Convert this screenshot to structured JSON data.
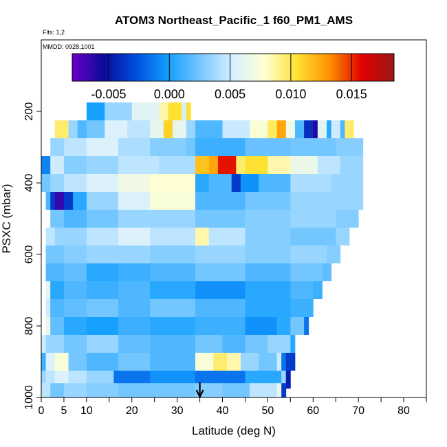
{
  "chart_data": {
    "type": "heatmap",
    "title": "ATOM3 Northeast_Pacific_1 f60_PM1_AMS",
    "flights_note": "Flts: 1,2",
    "dates_note": "MMDD: 0928,1001",
    "xlabel": "Latitude (deg N)",
    "ylabel": "PSXC (mbar)",
    "xlim": [
      0,
      85
    ],
    "ylim": [
      1000,
      0
    ],
    "x_ticks": [
      0,
      5,
      10,
      20,
      30,
      40,
      50,
      60,
      70,
      80
    ],
    "x_tick_labels": [
      "0",
      "5",
      "10",
      "20",
      "30",
      "40",
      "50",
      "60",
      "70",
      "80"
    ],
    "x_minor_ticks": [
      15,
      25,
      35,
      45,
      55,
      65,
      75,
      85
    ],
    "y_ticks": [
      200,
      400,
      600,
      800,
      1000
    ],
    "y_tick_labels": [
      "200",
      "400",
      "600",
      "800",
      "1000"
    ],
    "colorbar": {
      "min": -0.008,
      "max": 0.0185,
      "ticks": [
        -0.005,
        0.0,
        0.005,
        0.01,
        0.015
      ],
      "tick_labels": [
        "-0.005",
        "0.000",
        "0.005",
        "0.010",
        "0.015"
      ],
      "dividers": [
        -0.005,
        0.0,
        0.005,
        0.01,
        0.015
      ]
    },
    "colorscale": [
      "#6a00c8",
      "#0a0a9a",
      "#0050e0",
      "#14a0ff",
      "#78c8ff",
      "#d8f0ff",
      "#ffffd0",
      "#ffe030",
      "#ff9000",
      "#e00000",
      "#9c1818"
    ],
    "arrow_latitude": 35,
    "band_height_mbar": 50,
    "bands": [
      {
        "p": 200,
        "segments": [
          [
            10,
            14,
            0.0
          ],
          [
            14,
            20,
            0.0035
          ],
          [
            20,
            26,
            0.0058
          ],
          [
            26,
            28,
            0.0085
          ],
          [
            28,
            31,
            0.0105
          ],
          [
            31,
            32,
            0.0052
          ],
          [
            32,
            33,
            0.0105
          ]
        ]
      },
      {
        "p": 250,
        "segments": [
          [
            3,
            6,
            0.0095
          ],
          [
            6,
            8,
            0.0035
          ],
          [
            8,
            10,
            0.0015
          ],
          [
            10,
            14,
            0.0025
          ],
          [
            14,
            19,
            0.0055
          ],
          [
            19,
            24,
            0.0045
          ],
          [
            24,
            27,
            0.0062
          ],
          [
            27,
            29,
            0.011
          ],
          [
            29,
            32,
            0.0062
          ],
          [
            32,
            34,
            0.0035
          ],
          [
            34,
            40,
            0.0015
          ],
          [
            40,
            46,
            0.0048
          ],
          [
            46,
            50,
            0.0075
          ],
          [
            50,
            52,
            0.0098
          ],
          [
            52,
            54,
            0.0125
          ],
          [
            54,
            56,
            0.0068
          ],
          [
            56,
            58,
            0.0015
          ],
          [
            58,
            60,
            -0.004
          ],
          [
            60,
            61,
            -0.006
          ],
          [
            61,
            63,
            0.0058
          ],
          [
            63,
            64,
            0.0005
          ],
          [
            64,
            66,
            0.005
          ],
          [
            66,
            67,
            0.0015
          ],
          [
            67,
            69,
            0.0095
          ]
        ]
      },
      {
        "p": 300,
        "segments": [
          [
            2,
            5,
            0.0035
          ],
          [
            5,
            10,
            0.0045
          ],
          [
            10,
            17,
            0.0055
          ],
          [
            17,
            24,
            0.004
          ],
          [
            24,
            32,
            0.003
          ],
          [
            32,
            34,
            0.0025
          ],
          [
            34,
            45,
            0.001
          ],
          [
            45,
            55,
            0.0022
          ],
          [
            55,
            65,
            0.0025
          ],
          [
            65,
            71,
            0.003
          ]
        ]
      },
      {
        "p": 350,
        "segments": [
          [
            0,
            2,
            -0.001
          ],
          [
            2,
            5,
            0.005
          ],
          [
            5,
            10,
            0.003
          ],
          [
            10,
            17,
            0.0035
          ],
          [
            17,
            26,
            0.0045
          ],
          [
            26,
            34,
            0.004
          ],
          [
            34,
            37,
            0.0115
          ],
          [
            37,
            39,
            0.0125
          ],
          [
            39,
            43,
            0.0155
          ],
          [
            43,
            45,
            0.0095
          ],
          [
            45,
            50,
            0.0105
          ],
          [
            50,
            55,
            0.0085
          ],
          [
            55,
            61,
            0.0065
          ],
          [
            61,
            66,
            0.0045
          ],
          [
            66,
            71,
            0.0035
          ]
        ]
      },
      {
        "p": 400,
        "segments": [
          [
            0,
            2,
            0.0025
          ],
          [
            2,
            5,
            0.0035
          ],
          [
            5,
            10,
            0.0045
          ],
          [
            10,
            17,
            0.0055
          ],
          [
            17,
            24,
            0.0068
          ],
          [
            24,
            34,
            0.0078
          ],
          [
            34,
            37,
            0.0005
          ],
          [
            37,
            42,
            0.0015
          ],
          [
            42,
            44,
            -0.0035
          ],
          [
            44,
            48,
            -0.0005
          ],
          [
            48,
            55,
            0.0015
          ],
          [
            55,
            64,
            0.004
          ],
          [
            64,
            71,
            0.0035
          ]
        ]
      },
      {
        "p": 450,
        "segments": [
          [
            1,
            2,
            0.0015
          ],
          [
            2,
            3,
            -0.0035
          ],
          [
            3,
            5,
            -0.0065
          ],
          [
            5,
            7,
            -0.0035
          ],
          [
            7,
            10,
            0.0005
          ],
          [
            10,
            17,
            0.0035
          ],
          [
            17,
            24,
            0.0055
          ],
          [
            24,
            34,
            0.0075
          ],
          [
            34,
            45,
            0.0015
          ],
          [
            45,
            55,
            0.0025
          ],
          [
            55,
            65,
            0.0035
          ],
          [
            65,
            71,
            0.0035
          ]
        ]
      },
      {
        "p": 500,
        "segments": [
          [
            2,
            5,
            0.0025
          ],
          [
            5,
            10,
            0.0015
          ],
          [
            10,
            17,
            0.0025
          ],
          [
            17,
            24,
            0.0035
          ],
          [
            24,
            34,
            0.0035
          ],
          [
            34,
            45,
            0.0025
          ],
          [
            45,
            55,
            0.003
          ],
          [
            55,
            65,
            0.0035
          ],
          [
            65,
            70,
            0.003
          ]
        ]
      },
      {
        "p": 550,
        "segments": [
          [
            1,
            3,
            0.0045
          ],
          [
            3,
            10,
            0.0035
          ],
          [
            10,
            17,
            0.0045
          ],
          [
            17,
            24,
            0.0055
          ],
          [
            24,
            34,
            0.0045
          ],
          [
            34,
            37,
            0.0085
          ],
          [
            37,
            45,
            0.0045
          ],
          [
            45,
            55,
            0.003
          ],
          [
            55,
            65,
            0.0025
          ],
          [
            65,
            68,
            0.0035
          ]
        ]
      },
      {
        "p": 600,
        "segments": [
          [
            1,
            5,
            0.0025
          ],
          [
            5,
            10,
            0.003
          ],
          [
            10,
            17,
            0.0035
          ],
          [
            17,
            24,
            0.0035
          ],
          [
            24,
            34,
            0.003
          ],
          [
            34,
            45,
            0.0035
          ],
          [
            45,
            55,
            0.003
          ],
          [
            55,
            63,
            0.0035
          ],
          [
            63,
            66,
            0.003
          ]
        ]
      },
      {
        "p": 650,
        "segments": [
          [
            1,
            5,
            0.0015
          ],
          [
            5,
            10,
            0.002
          ],
          [
            10,
            17,
            0.0005
          ],
          [
            17,
            24,
            0.001
          ],
          [
            24,
            34,
            0.0015
          ],
          [
            34,
            45,
            0.0025
          ],
          [
            45,
            55,
            0.0015
          ],
          [
            55,
            62,
            0.0025
          ],
          [
            62,
            64,
            0.002
          ]
        ]
      },
      {
        "p": 700,
        "segments": [
          [
            1,
            2,
            0.006
          ],
          [
            2,
            5,
            0.0005
          ],
          [
            5,
            10,
            0.0015
          ],
          [
            10,
            17,
            0.001
          ],
          [
            17,
            24,
            0.0015
          ],
          [
            24,
            34,
            0.0005
          ],
          [
            34,
            45,
            -0.0005
          ],
          [
            45,
            55,
            0.0005
          ],
          [
            55,
            60,
            0.0015
          ],
          [
            60,
            62,
            0.001
          ]
        ]
      },
      {
        "p": 750,
        "segments": [
          [
            1,
            2,
            0.005
          ],
          [
            2,
            5,
            0.0015
          ],
          [
            5,
            10,
            0.002
          ],
          [
            10,
            17,
            0.0025
          ],
          [
            17,
            24,
            0.0015
          ],
          [
            24,
            34,
            0.0025
          ],
          [
            34,
            45,
            0.0015
          ],
          [
            45,
            55,
            0.0005
          ],
          [
            55,
            60,
            0.001
          ]
        ]
      },
      {
        "p": 800,
        "segments": [
          [
            1,
            2,
            0.0065
          ],
          [
            2,
            5,
            0.002
          ],
          [
            5,
            10,
            0.0005
          ],
          [
            10,
            17,
            0.0
          ],
          [
            17,
            24,
            0.001
          ],
          [
            24,
            34,
            0.0005
          ],
          [
            34,
            45,
            0.001
          ],
          [
            45,
            52,
            -0.0005
          ],
          [
            52,
            55,
            0.0005
          ],
          [
            55,
            58,
            0.0025
          ],
          [
            58,
            59,
            -0.0015
          ]
        ]
      },
      {
        "p": 850,
        "segments": [
          [
            0,
            1,
            0.005
          ],
          [
            1,
            5,
            0.0035
          ],
          [
            5,
            10,
            0.0025
          ],
          [
            10,
            17,
            0.0035
          ],
          [
            17,
            24,
            0.002
          ],
          [
            24,
            34,
            0.0015
          ],
          [
            34,
            40,
            0.0025
          ],
          [
            40,
            45,
            0.0015
          ],
          [
            45,
            50,
            0.0025
          ],
          [
            50,
            55,
            0.0035
          ],
          [
            55,
            56,
            0.0005
          ]
        ]
      },
      {
        "p": 900,
        "segments": [
          [
            0,
            1,
            0.001
          ],
          [
            1,
            3,
            0.0055
          ],
          [
            3,
            6,
            0.0075
          ],
          [
            6,
            10,
            0.0025
          ],
          [
            10,
            17,
            0.0015
          ],
          [
            17,
            24,
            0.0025
          ],
          [
            24,
            34,
            0.0015
          ],
          [
            34,
            38,
            0.0075
          ],
          [
            38,
            41,
            0.0095
          ],
          [
            41,
            44,
            0.0085
          ],
          [
            44,
            48,
            0.0035
          ],
          [
            48,
            52,
            0.0025
          ],
          [
            52,
            53,
            0.005
          ],
          [
            53,
            54,
            -0.0015
          ],
          [
            54,
            56,
            -0.0035
          ]
        ]
      },
      {
        "p": 950,
        "segments": [
          [
            0,
            1,
            0.0035
          ],
          [
            1,
            3,
            0.0045
          ],
          [
            3,
            6,
            0.0055
          ],
          [
            6,
            10,
            0.0045
          ],
          [
            10,
            16,
            0.0035
          ],
          [
            16,
            24,
            -0.0015
          ],
          [
            24,
            34,
            -0.0005
          ],
          [
            34,
            45,
            -0.0015
          ],
          [
            45,
            47,
            0.0005
          ],
          [
            47,
            53,
            0.0005
          ],
          [
            53,
            54,
            0.0035
          ],
          [
            54,
            55,
            -0.0045
          ]
        ]
      },
      {
        "p": 985,
        "segments": [
          [
            0,
            2,
            0.0045
          ],
          [
            2,
            5,
            0.0025
          ],
          [
            5,
            10,
            0.0035
          ],
          [
            10,
            17,
            0.003
          ],
          [
            17,
            24,
            0.0025
          ],
          [
            24,
            34,
            0.0025
          ],
          [
            34,
            40,
            0.003
          ],
          [
            40,
            46,
            0.0025
          ],
          [
            46,
            52,
            0.0045
          ],
          [
            52,
            53,
            0.0065
          ],
          [
            53,
            54,
            -0.0035
          ]
        ]
      }
    ]
  }
}
